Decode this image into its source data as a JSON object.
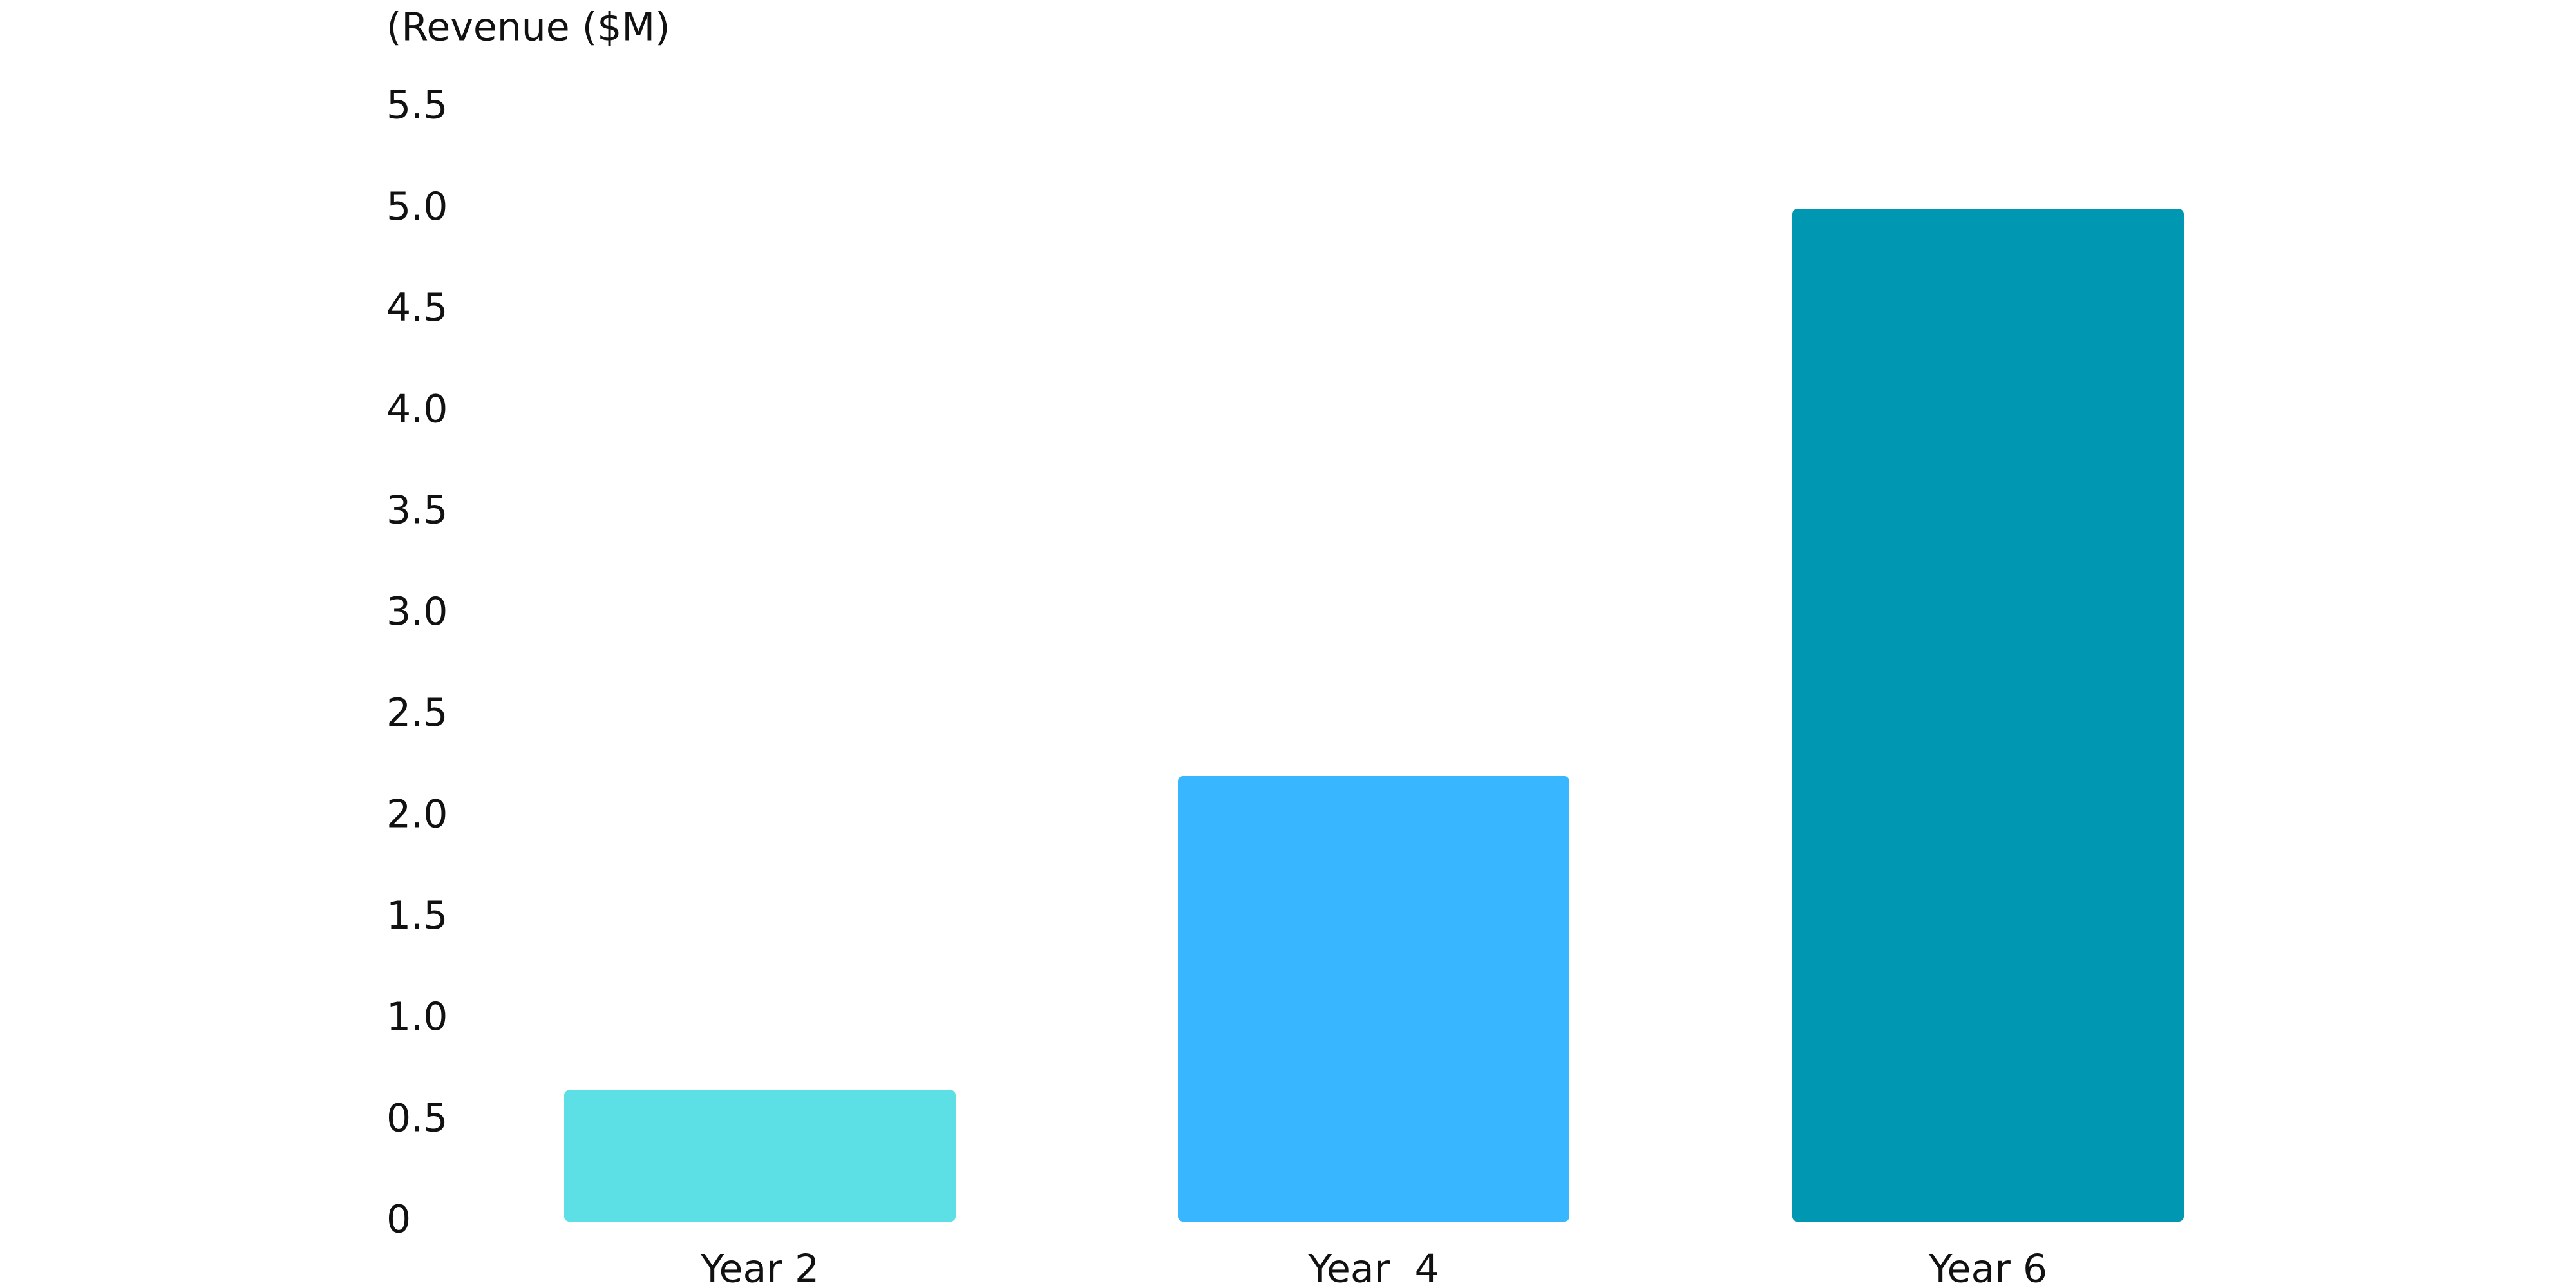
{
  "chart_data": {
    "type": "bar",
    "y_axis_label": "(Revenue ($M)",
    "categories": [
      "Year 2",
      "Year  4",
      "Year 6"
    ],
    "values": [
      0.65,
      2.2,
      5.0
    ],
    "colors": [
      "#5ce0e6",
      "#38b6ff",
      "#0097b2"
    ],
    "ylim": [
      0,
      5.5
    ],
    "yticks": [
      0,
      0.5,
      {
        "value": 1,
        "label": "1.0"
      },
      1.5,
      {
        "value": 2,
        "label": "2.0"
      },
      2.5,
      {
        "value": 3,
        "label": "3.0"
      },
      3.5,
      {
        "value": 4,
        "label": "4.0"
      },
      4.5,
      {
        "value": 5,
        "label": "5.0"
      },
      5.5
    ],
    "grid": false
  }
}
